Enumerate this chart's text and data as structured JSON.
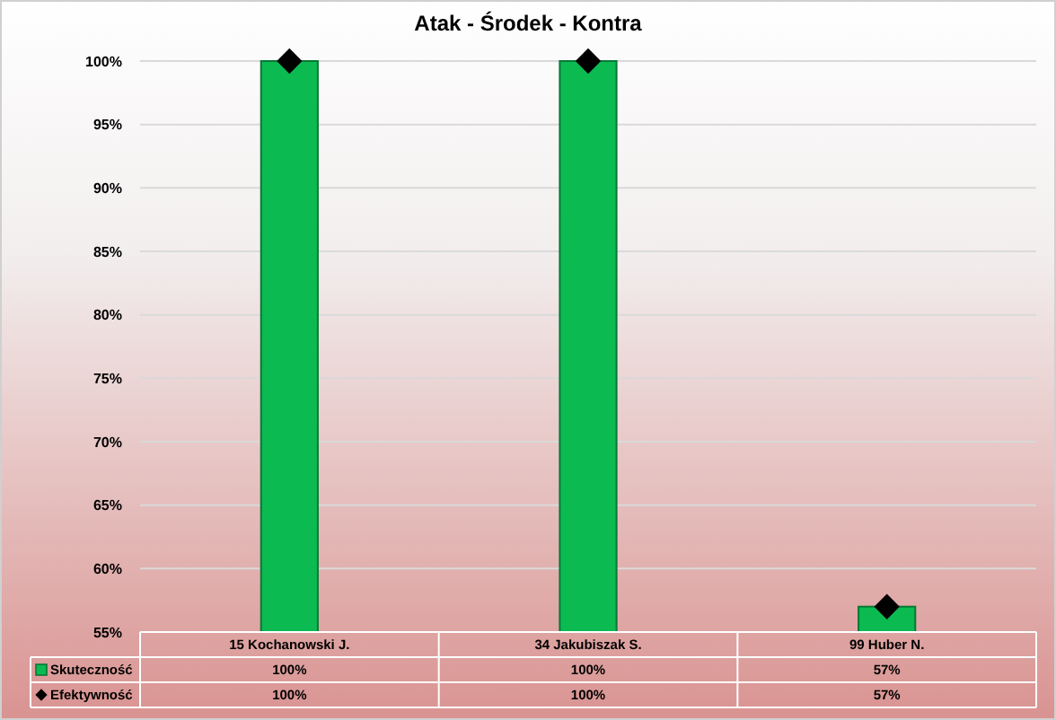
{
  "chart_data": {
    "type": "bar",
    "title": "Atak - Środek - Kontra",
    "categories": [
      "15 Kochanowski J.",
      "34 Jakubiszak S.",
      "99 Huber N."
    ],
    "series": [
      {
        "name": "Skuteczność",
        "color": "#0bba51",
        "values": [
          100,
          100,
          57
        ],
        "value_labels": [
          "100%",
          "100%",
          "57%"
        ]
      },
      {
        "name": "Efektywność",
        "type": "scatter",
        "marker": "diamond",
        "color": "#000000",
        "values": [
          100,
          100,
          57
        ],
        "value_labels": [
          "100%",
          "100%",
          "57%"
        ]
      }
    ],
    "ylim": [
      55,
      100
    ],
    "yticks": [
      {
        "value": 55,
        "label": "55%"
      },
      {
        "value": 60,
        "label": "60%"
      },
      {
        "value": 65,
        "label": "65%"
      },
      {
        "value": 70,
        "label": "70%"
      },
      {
        "value": 75,
        "label": "75%"
      },
      {
        "value": 80,
        "label": "80%"
      },
      {
        "value": 85,
        "label": "85%"
      },
      {
        "value": 90,
        "label": "90%"
      },
      {
        "value": 95,
        "label": "95%"
      },
      {
        "value": 100,
        "label": "100%"
      }
    ],
    "grid": "y",
    "legend": "bottom"
  }
}
